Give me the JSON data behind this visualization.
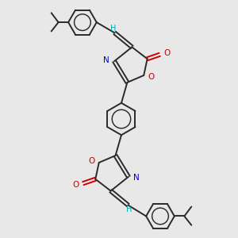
{
  "bg_color": "#e8e8e8",
  "bond_color": "#2a2a2a",
  "N_color": "#0000cc",
  "O_color": "#cc0000",
  "H_color": "#00aaaa",
  "lw": 1.4,
  "figsize": [
    3.0,
    3.0
  ],
  "dpi": 100,
  "xlim": [
    0,
    10
  ],
  "ylim": [
    0,
    10
  ]
}
